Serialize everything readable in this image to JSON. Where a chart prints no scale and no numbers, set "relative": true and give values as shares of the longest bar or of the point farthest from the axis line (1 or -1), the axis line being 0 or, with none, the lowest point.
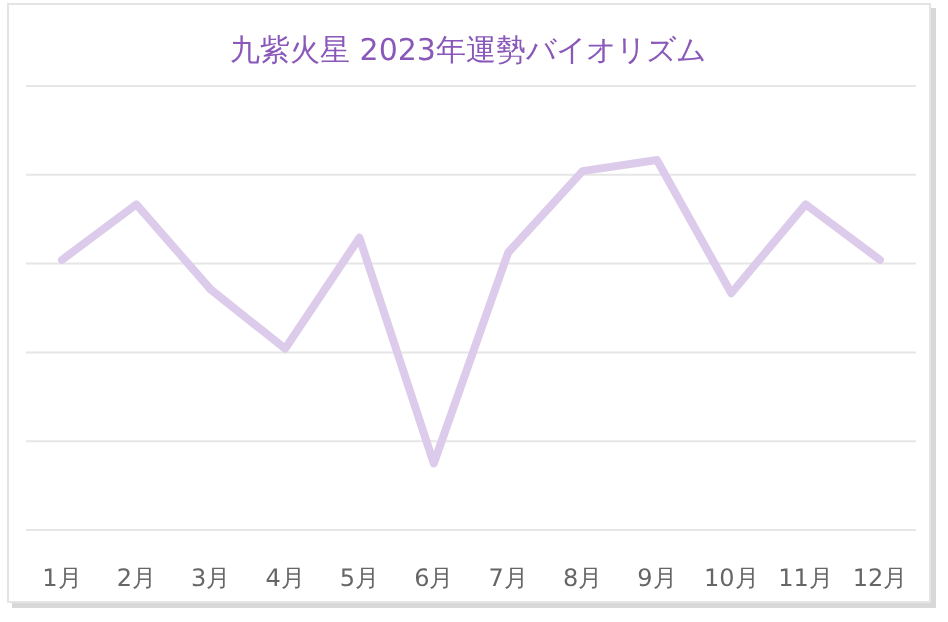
{
  "chart_data": {
    "type": "line",
    "title": "九紫火星  2023年運勢バイオリズム",
    "categories": [
      "1月",
      "2月",
      "3月",
      "4月",
      "5月",
      "6月",
      "7月",
      "8月",
      "9月",
      "10月",
      "11月",
      "12月"
    ],
    "series": [
      {
        "color": "#dccbeb",
        "values": [
          0.73,
          0.88,
          0.65,
          0.49,
          0.79,
          0.18,
          0.75,
          0.97,
          1,
          0.64,
          0.88,
          0.73
        ]
      }
    ],
    "relative": true,
    "grid": "y",
    "marker": "none",
    "line_style": "solid"
  }
}
